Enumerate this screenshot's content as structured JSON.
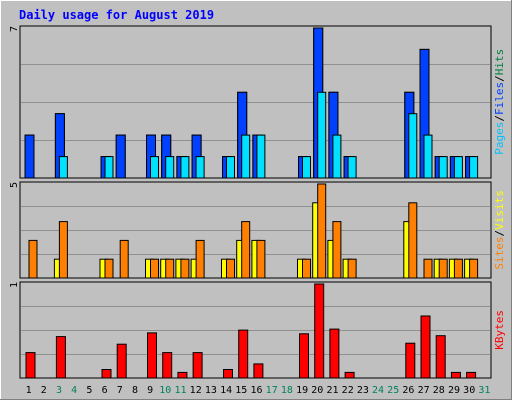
{
  "chart_data": {
    "type": "bar",
    "title": "Daily usage for August 2019",
    "categories": [
      "1",
      "2",
      "3",
      "4",
      "5",
      "6",
      "7",
      "8",
      "9",
      "10",
      "11",
      "12",
      "13",
      "14",
      "15",
      "16",
      "17",
      "18",
      "19",
      "20",
      "21",
      "22",
      "23",
      "24",
      "25",
      "26",
      "27",
      "28",
      "29",
      "30",
      "31"
    ],
    "weekend_days": [
      "3",
      "4",
      "10",
      "11",
      "17",
      "18",
      "24",
      "25",
      "31"
    ],
    "panels": [
      {
        "name": "pages-files-hits",
        "ymax_label": "7",
        "ymax": 7,
        "legend": [
          {
            "label": "Pages",
            "color": "#00c0ff"
          },
          {
            "label": "/",
            "color": "#000000"
          },
          {
            "label": "Files",
            "color": "#0040ff"
          },
          {
            "label": "/",
            "color": "#000000"
          },
          {
            "label": "Hits",
            "color": "#008040"
          }
        ],
        "series": [
          {
            "name": "Hits",
            "color": "#008040",
            "values": [
              2,
              0,
              3,
              0,
              0,
              1,
              2,
              0,
              2,
              2,
              1,
              2,
              0,
              1,
              4,
              2,
              0,
              0,
              1,
              7,
              4,
              1,
              0,
              0,
              0,
              4,
              6,
              1,
              1,
              1,
              0
            ]
          },
          {
            "name": "Files",
            "color": "#0040ff",
            "values": [
              2,
              0,
              3,
              0,
              0,
              1,
              2,
              0,
              2,
              2,
              1,
              2,
              0,
              1,
              4,
              2,
              0,
              0,
              1,
              7,
              4,
              1,
              0,
              0,
              0,
              4,
              6,
              1,
              1,
              1,
              0
            ]
          },
          {
            "name": "Pages",
            "color": "#00e0ff",
            "values": [
              0,
              0,
              1,
              0,
              0,
              1,
              0,
              0,
              1,
              1,
              1,
              1,
              0,
              1,
              2,
              2,
              0,
              0,
              1,
              4,
              2,
              1,
              0,
              0,
              0,
              3,
              2,
              1,
              1,
              1,
              0
            ]
          }
        ]
      },
      {
        "name": "sites-visits",
        "ymax_label": "5",
        "ymax": 5,
        "legend": [
          {
            "label": "Sites",
            "color": "#ff8000"
          },
          {
            "label": "/",
            "color": "#000000"
          },
          {
            "label": "Visits",
            "color": "#ffff00"
          }
        ],
        "series": [
          {
            "name": "Visits",
            "color": "#ffff00",
            "values": [
              0,
              0,
              1,
              0,
              0,
              1,
              0,
              0,
              1,
              1,
              1,
              1,
              0,
              1,
              2,
              2,
              0,
              0,
              1,
              4,
              2,
              1,
              0,
              0,
              0,
              3,
              0,
              1,
              1,
              1,
              0
            ]
          },
          {
            "name": "Sites",
            "color": "#ff8000",
            "values": [
              2,
              0,
              3,
              0,
              0,
              1,
              2,
              0,
              1,
              1,
              1,
              2,
              0,
              1,
              3,
              2,
              0,
              0,
              1,
              5,
              3,
              1,
              0,
              0,
              0,
              4,
              1,
              1,
              1,
              1,
              0
            ]
          }
        ]
      },
      {
        "name": "kbytes",
        "ymax_label": "1",
        "ymax": 1,
        "legend": [
          {
            "label": "KBytes",
            "color": "#ff0000"
          }
        ],
        "series": [
          {
            "name": "KBytes",
            "color": "#ff0000",
            "values": [
              0.27,
              0,
              0.44,
              0,
              0,
              0.09,
              0.36,
              0,
              0.48,
              0.27,
              0.06,
              0.27,
              0,
              0.09,
              0.51,
              0.15,
              0,
              0,
              0.47,
              1.0,
              0.52,
              0.06,
              0,
              0,
              0,
              0.37,
              0.66,
              0.45,
              0.06,
              0.06,
              0
            ]
          }
        ]
      }
    ]
  }
}
